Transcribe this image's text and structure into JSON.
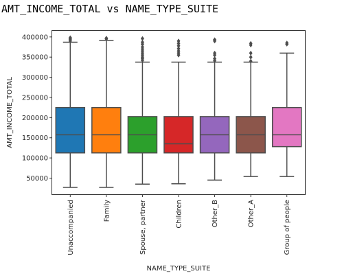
{
  "chart_data": {
    "type": "boxplot",
    "title": "AMT_INCOME_TOTAL vs NAME_TYPE_SUITE",
    "xlabel": "NAME_TYPE_SUITE",
    "ylabel": "AMT_INCOME_TOTAL",
    "ylim": [
      10000,
      415000
    ],
    "yticks": [
      50000,
      100000,
      150000,
      200000,
      250000,
      300000,
      350000,
      400000
    ],
    "ytick_labels": [
      "50000",
      "100000",
      "150000",
      "200000",
      "250000",
      "300000",
      "350000",
      "400000"
    ],
    "grid": false,
    "categories": [
      "Unaccompanied",
      "Family",
      "Spouse, partner",
      "Children",
      "Other_B",
      "Other_A",
      "Group of people"
    ],
    "boxes": [
      {
        "category": "Unaccompanied",
        "color": "#1f77b4",
        "whisker_low": 27000,
        "q1": 112500,
        "median": 157500,
        "q3": 225000,
        "whisker_high": 387000,
        "outliers": [
          390000,
          393000,
          396000,
          398000
        ]
      },
      {
        "category": "Family",
        "color": "#ff7f0e",
        "whisker_low": 27000,
        "q1": 112500,
        "median": 157500,
        "q3": 225000,
        "whisker_high": 391500,
        "outliers": [
          395000,
          397000
        ]
      },
      {
        "category": "Spouse, partner",
        "color": "#2ca02c",
        "whisker_low": 35000,
        "q1": 112500,
        "median": 157500,
        "q3": 202500,
        "whisker_high": 337500,
        "outliers": [
          342000,
          346000,
          350000,
          355000,
          360000,
          365000,
          370000,
          375000,
          382000,
          387000,
          396000
        ]
      },
      {
        "category": "Children",
        "color": "#d62728",
        "whisker_low": 36000,
        "q1": 112500,
        "median": 135000,
        "q3": 202500,
        "whisker_high": 337500,
        "outliers": [
          355000,
          360000,
          365000,
          371000,
          378000,
          384000,
          390000
        ]
      },
      {
        "category": "Other_B",
        "color": "#9467bd",
        "whisker_low": 45000,
        "q1": 112500,
        "median": 157500,
        "q3": 202500,
        "whisker_high": 337500,
        "outliers": [
          341000,
          346000,
          355000,
          360000,
          390000,
          393000
        ]
      },
      {
        "category": "Other_A",
        "color": "#8c564b",
        "whisker_low": 54000,
        "q1": 112500,
        "median": 157500,
        "q3": 202500,
        "whisker_high": 337500,
        "outliers": [
          340000,
          350000,
          360000,
          380000,
          384000
        ]
      },
      {
        "category": "Group of people",
        "color": "#e377c2",
        "whisker_low": 54000,
        "q1": 128000,
        "median": 157500,
        "q3": 225000,
        "whisker_high": 360000,
        "outliers": [
          382000,
          385000
        ]
      }
    ]
  }
}
